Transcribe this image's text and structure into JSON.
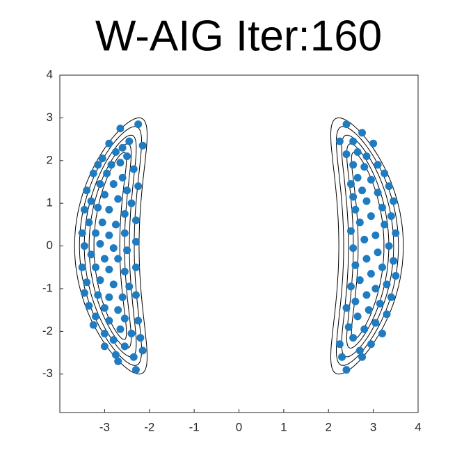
{
  "chart_data": {
    "type": "scatter",
    "title": "W-AIG Iter:160",
    "color": "#1f7cc1",
    "xlim": [
      -4,
      4
    ],
    "ylim": [
      -3.9,
      4
    ],
    "xticks": [
      -3,
      -2,
      -1,
      0,
      1,
      2,
      3,
      4
    ],
    "yticks": [
      -3,
      -2,
      -1,
      0,
      1,
      2,
      3,
      4
    ],
    "x": [
      -2.25,
      -2.65,
      -2.15,
      -2.9,
      -2.45,
      -2.6,
      -2.75,
      -3.05,
      -2.5,
      -2.35,
      -2.85,
      -3.15,
      -2.65,
      -3.25,
      -2.95,
      -2.6,
      -2.25,
      -3.4,
      -3.1,
      -2.8,
      -2.5,
      -3.3,
      -3.0,
      -2.7,
      -2.4,
      -3.45,
      -3.15,
      -2.9,
      -2.55,
      -2.3,
      -3.35,
      -3.05,
      -2.75,
      -3.5,
      -3.2,
      -2.9,
      -2.55,
      -2.3,
      -3.45,
      -3.1,
      -2.8,
      -2.5,
      -3.3,
      -3.0,
      -2.7,
      -3.5,
      -3.2,
      -2.9,
      -2.55,
      -2.3,
      -3.4,
      -3.1,
      -2.8,
      -2.45,
      -3.45,
      -3.15,
      -2.9,
      -2.6,
      -2.3,
      -3.35,
      -3.0,
      -2.7,
      -3.2,
      -2.9,
      -2.55,
      -2.25,
      -3.25,
      -2.65,
      -3.0,
      -2.4,
      -2.8,
      -2.2,
      -3.0,
      -2.55,
      -2.15,
      -2.75,
      -2.35,
      -2.7,
      -2.3,
      2.4,
      2.75,
      2.25,
      2.55,
      3.0,
      2.65,
      2.85,
      2.4,
      3.1,
      2.55,
      2.8,
      3.25,
      2.65,
      2.95,
      2.5,
      3.35,
      2.75,
      3.1,
      2.55,
      3.45,
      2.85,
      3.2,
      2.6,
      3.4,
      2.95,
      2.7,
      3.25,
      2.5,
      3.5,
      3.05,
      2.8,
      3.35,
      2.55,
      3.1,
      2.85,
      3.45,
      2.6,
      3.2,
      2.95,
      3.5,
      2.7,
      3.3,
      2.5,
      3.05,
      2.85,
      3.4,
      2.6,
      3.15,
      2.4,
      2.9,
      3.3,
      2.65,
      3.05,
      2.45,
      2.8,
      3.2,
      2.55,
      2.25,
      2.95,
      2.7,
      2.3,
      2.75,
      2.4
    ],
    "values": [
      2.85,
      2.75,
      2.35,
      2.4,
      2.45,
      2.3,
      2.2,
      2.05,
      2.1,
      1.8,
      1.9,
      1.9,
      1.95,
      1.7,
      1.7,
      1.6,
      1.4,
      1.3,
      1.45,
      1.45,
      1.3,
      1.05,
      1.2,
      1.1,
      1.0,
      0.85,
      0.9,
      0.85,
      0.75,
      0.6,
      0.55,
      0.55,
      0.5,
      0.3,
      0.3,
      0.25,
      0.3,
      0.1,
      0.0,
      0.05,
      -0.05,
      -0.1,
      -0.2,
      -0.3,
      -0.3,
      -0.5,
      -0.5,
      -0.55,
      -0.6,
      -0.5,
      -0.85,
      -0.8,
      -0.9,
      -0.95,
      -1.1,
      -1.15,
      -1.2,
      -1.2,
      -1.15,
      -1.4,
      -1.45,
      -1.5,
      -1.65,
      -1.75,
      -1.7,
      -1.75,
      -1.85,
      -1.95,
      -2.05,
      -2.05,
      -2.2,
      -2.15,
      -2.35,
      -2.35,
      -2.45,
      -2.55,
      -2.6,
      -2.7,
      -2.9,
      2.85,
      2.65,
      2.45,
      2.45,
      2.4,
      2.2,
      2.1,
      2.15,
      1.9,
      1.9,
      1.85,
      1.7,
      1.6,
      1.55,
      1.45,
      1.4,
      1.3,
      1.25,
      1.15,
      1.05,
      1.05,
      0.9,
      0.85,
      0.7,
      0.7,
      0.55,
      0.5,
      0.35,
      0.3,
      0.25,
      0.15,
      0.0,
      -0.05,
      -0.15,
      -0.3,
      -0.35,
      -0.45,
      -0.5,
      -0.65,
      -0.7,
      -0.8,
      -0.9,
      -0.95,
      -1.0,
      -1.15,
      -1.2,
      -1.3,
      -1.35,
      -1.45,
      -1.5,
      -1.6,
      -1.65,
      -1.8,
      -1.9,
      -1.95,
      -2.05,
      -2.15,
      -2.3,
      -2.3,
      -2.45,
      -2.6,
      -2.6,
      -2.9
    ]
  }
}
